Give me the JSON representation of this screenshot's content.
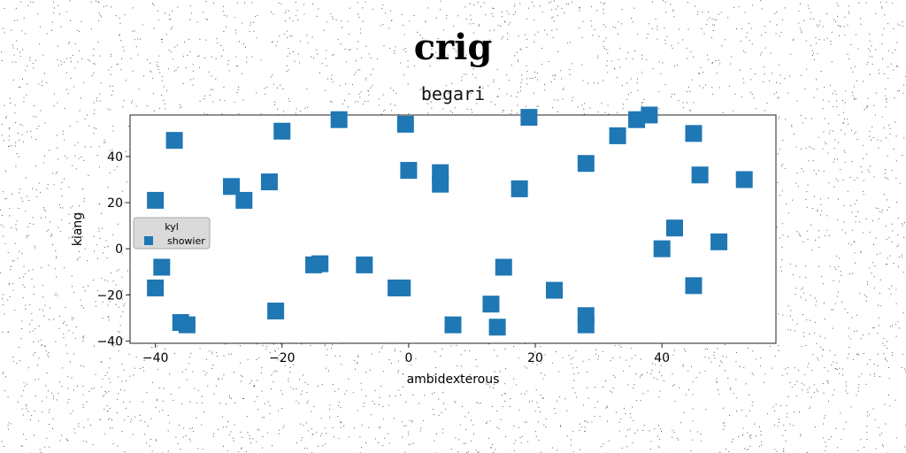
{
  "chart_data": {
    "type": "scatter",
    "title": "crig",
    "subtitle": "begari",
    "xlabel": "ambidexterous",
    "ylabel": "kiang",
    "xlim": [
      -44,
      58
    ],
    "ylim": [
      -41,
      58
    ],
    "xticks": [
      -40,
      -20,
      0,
      20,
      40
    ],
    "yticks": [
      -40,
      -20,
      0,
      20,
      40
    ],
    "grid": false,
    "legend": {
      "title": "kyl",
      "placement": "center-left"
    },
    "marker": "square",
    "series": [
      {
        "name": "showier",
        "color": "#1f77b4",
        "points": [
          [
            -11,
            56
          ],
          [
            -20,
            51
          ],
          [
            -0.5,
            54
          ],
          [
            19,
            57
          ],
          [
            36,
            56
          ],
          [
            38,
            58
          ],
          [
            33,
            49
          ],
          [
            45,
            50
          ],
          [
            -37,
            47
          ],
          [
            0,
            34
          ],
          [
            5,
            33
          ],
          [
            5,
            28
          ],
          [
            28,
            37
          ],
          [
            17.5,
            26
          ],
          [
            46,
            32
          ],
          [
            53,
            30
          ],
          [
            -28,
            27
          ],
          [
            -26,
            21
          ],
          [
            -22,
            29
          ],
          [
            -40,
            21
          ],
          [
            42,
            9
          ],
          [
            40,
            0
          ],
          [
            49,
            3
          ],
          [
            -39,
            -8
          ],
          [
            -15,
            -7
          ],
          [
            -14,
            -6.5
          ],
          [
            -7,
            -7
          ],
          [
            15,
            -8
          ],
          [
            -2,
            -17
          ],
          [
            -1,
            -17
          ],
          [
            23,
            -18
          ],
          [
            45,
            -16
          ],
          [
            -40,
            -17
          ],
          [
            -21,
            -27
          ],
          [
            13,
            -24
          ],
          [
            28,
            -29
          ],
          [
            28,
            -33
          ],
          [
            -36,
            -32
          ],
          [
            -35,
            -33
          ],
          [
            7,
            -33
          ],
          [
            14,
            -34
          ]
        ]
      }
    ]
  }
}
